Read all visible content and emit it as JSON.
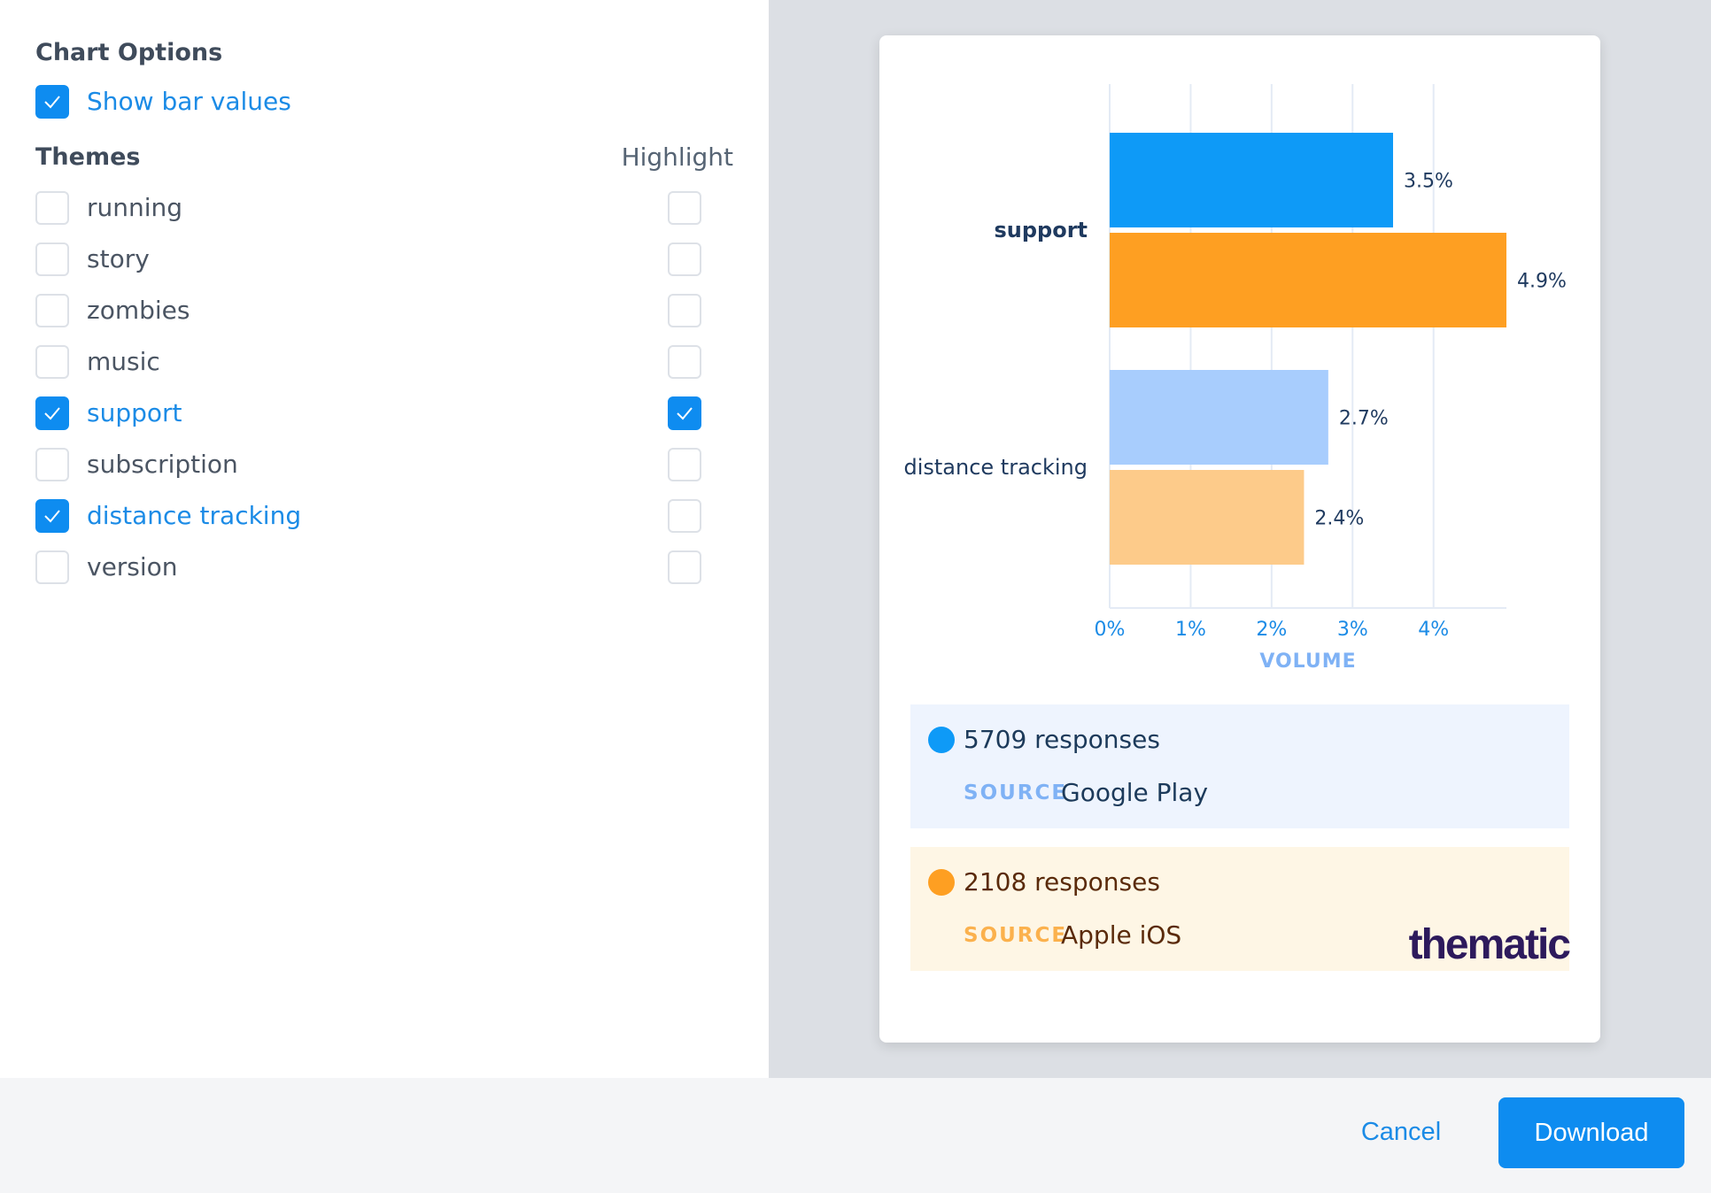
{
  "options": {
    "title": "Chart Options",
    "show_bar_values": {
      "label": "Show bar values",
      "checked": true
    },
    "themes_title": "Themes",
    "highlight_title": "Highlight",
    "themes": [
      {
        "label": "running",
        "checked": false,
        "highlight": false
      },
      {
        "label": "story",
        "checked": false,
        "highlight": false
      },
      {
        "label": "zombies",
        "checked": false,
        "highlight": false
      },
      {
        "label": "music",
        "checked": false,
        "highlight": false
      },
      {
        "label": "support",
        "checked": true,
        "highlight": true
      },
      {
        "label": "subscription",
        "checked": false,
        "highlight": false
      },
      {
        "label": "distance tracking",
        "checked": true,
        "highlight": false
      },
      {
        "label": "version",
        "checked": false,
        "highlight": false
      }
    ]
  },
  "chart_data": {
    "type": "bar",
    "orientation": "horizontal",
    "categories": [
      "support",
      "distance tracking"
    ],
    "highlighted_category": "support",
    "series": [
      {
        "values": [
          3.5,
          2.7
        ],
        "value_labels": [
          "3.5%",
          "2.7%"
        ]
      },
      {
        "values": [
          4.9,
          2.4
        ],
        "value_labels": [
          "4.9%",
          "2.4%"
        ]
      }
    ],
    "colors": {
      "highlighted": [
        "#0e9af7",
        "#fe9f22"
      ],
      "normal": [
        "#a8cdfd",
        "#fdcb8a"
      ]
    },
    "xlabel": "VOLUME",
    "xlim": [
      0,
      4.9
    ],
    "x_ticks": [
      0,
      1,
      2,
      3,
      4
    ],
    "x_tick_labels": [
      "0%",
      "1%",
      "2%",
      "3%",
      "4%"
    ],
    "grid": true
  },
  "legend": [
    {
      "count": "5709 responses",
      "source_label": "SOURCE",
      "source_value": "Google Play",
      "color": "#0e9af7",
      "bg": "#eef4fe",
      "text_color": "#1c3a5a",
      "label_color": "#7fb2f5"
    },
    {
      "count": "2108 responses",
      "source_label": "SOURCE",
      "source_value": "Apple iOS",
      "color": "#fe9f22",
      "bg": "#fef6e5",
      "text_color": "#5a2a0a",
      "label_color": "#fbb14d"
    }
  ],
  "brand": "thematic",
  "footer": {
    "cancel_label": "Cancel",
    "download_label": "Download"
  }
}
